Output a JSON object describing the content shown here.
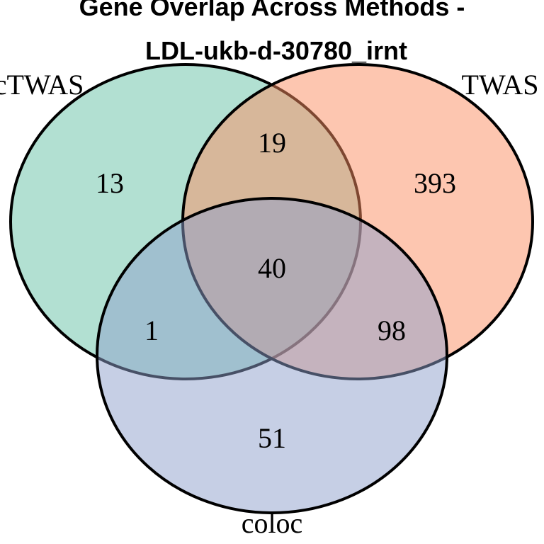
{
  "title": {
    "line1": "Gene Overlap Across Methods -",
    "line2": "LDL-ukb-d-30780_irnt"
  },
  "sets": [
    {
      "name": "cTWAS",
      "color": "#66c2a5"
    },
    {
      "name": "TWAS",
      "color": "#fc8d62"
    },
    {
      "name": "coloc",
      "color": "#8da0cb"
    }
  ],
  "regions": {
    "ctwas_only": "13",
    "twas_only": "393",
    "coloc_only": "51",
    "ctwas_twas": "19",
    "ctwas_coloc": "1",
    "twas_coloc": "98",
    "all_three": "40"
  }
}
